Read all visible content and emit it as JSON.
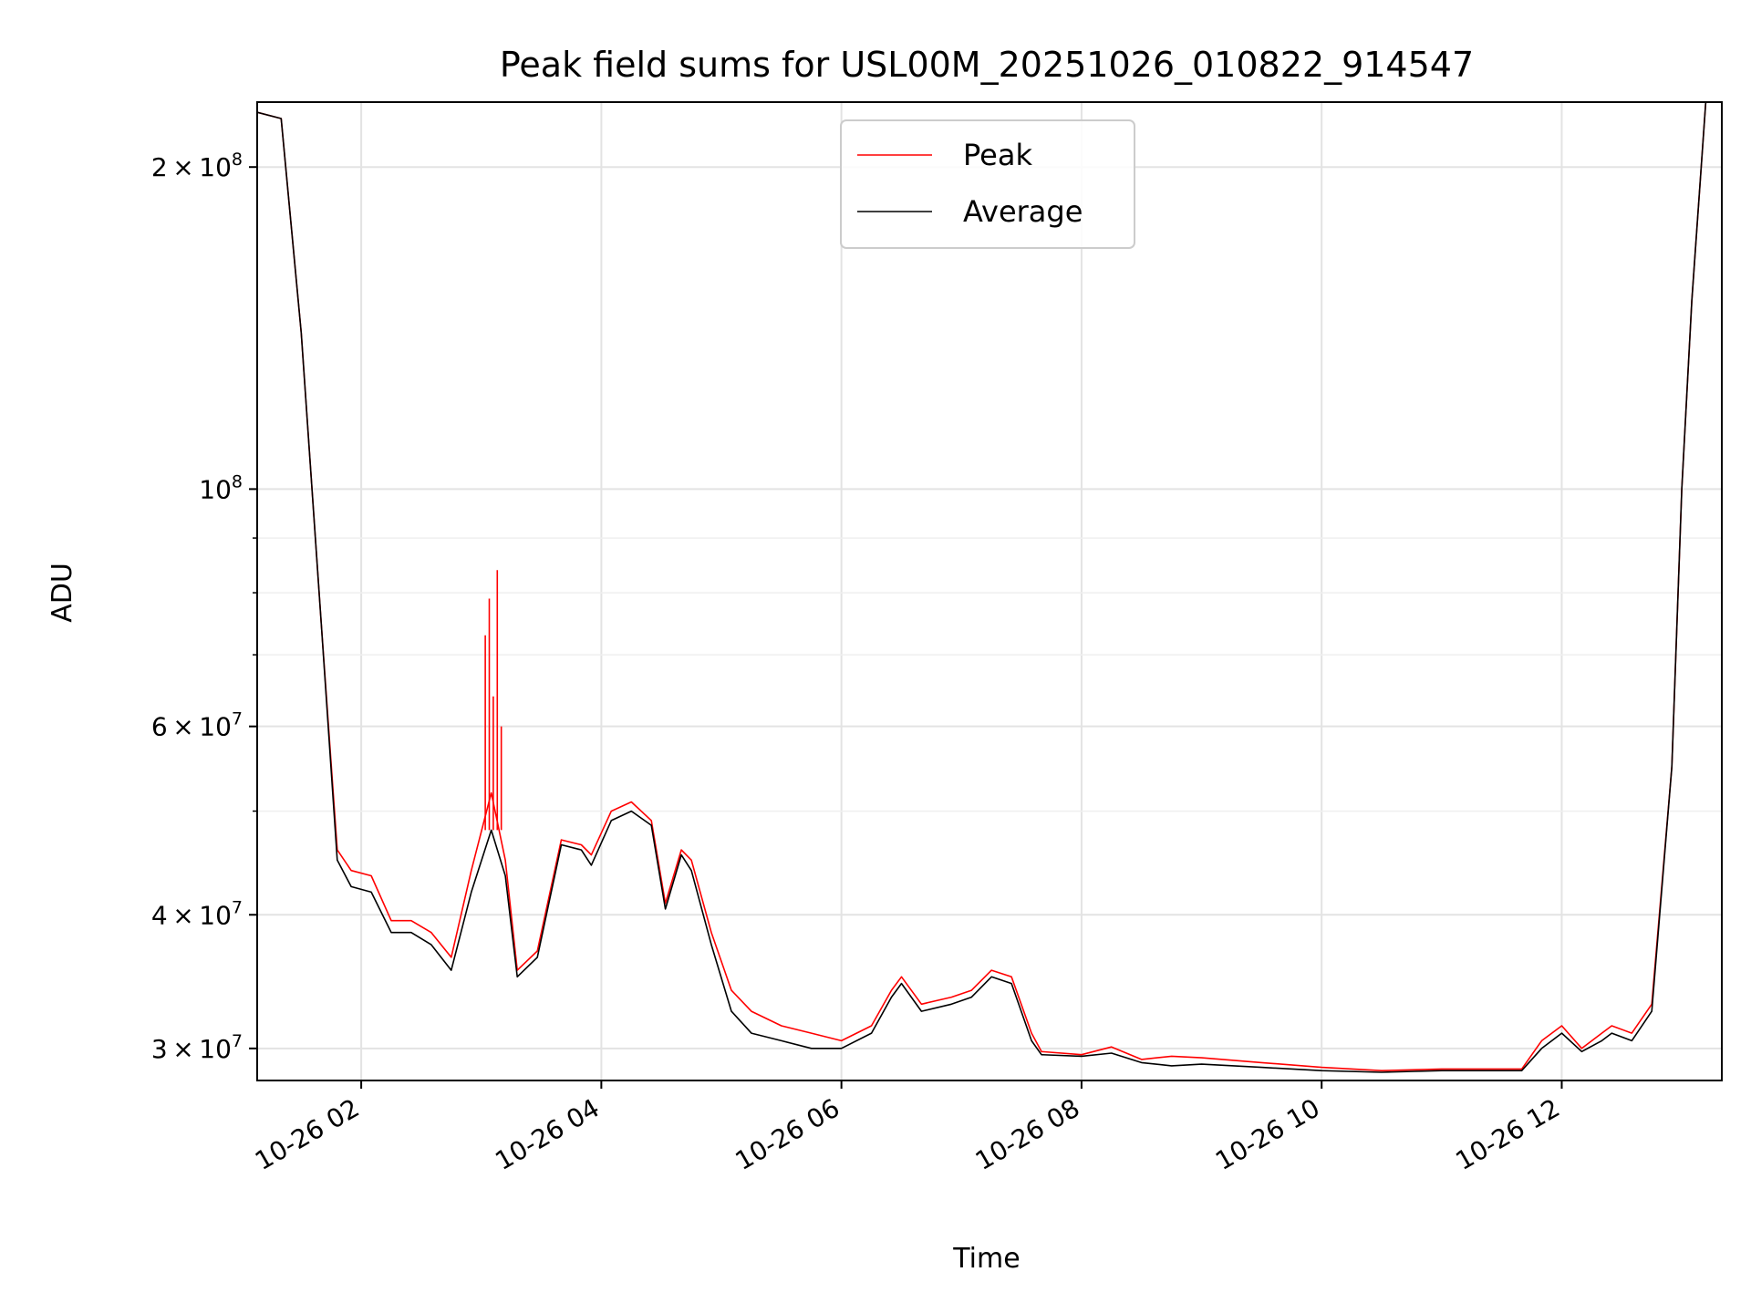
{
  "chart_data": {
    "type": "line",
    "title": "Peak field sums for USL00M_20251026_010822_914547",
    "xlabel": "Time",
    "ylabel": "ADU",
    "y_scale": "log",
    "xlim": [
      "2025-10-26 01:08",
      "2025-10-26 13:20"
    ],
    "ylim": [
      28000000,
      230000000
    ],
    "grid": true,
    "legend_position": "top-center",
    "x_ticks": [
      {
        "value": "2025-10-26 02:00",
        "label": "10-26 02"
      },
      {
        "value": "2025-10-26 04:00",
        "label": "10-26 04"
      },
      {
        "value": "2025-10-26 06:00",
        "label": "10-26 06"
      },
      {
        "value": "2025-10-26 08:00",
        "label": "10-26 08"
      },
      {
        "value": "2025-10-26 10:00",
        "label": "10-26 10"
      },
      {
        "value": "2025-10-26 12:00",
        "label": "10-26 12"
      }
    ],
    "y_ticks": [
      {
        "value": 30000000,
        "base": "3",
        "exp": "7"
      },
      {
        "value": 40000000,
        "base": "4",
        "exp": "7"
      },
      {
        "value": 60000000,
        "base": "6",
        "exp": "7"
      },
      {
        "value": 100000000,
        "base": "",
        "exp": "8"
      },
      {
        "value": 200000000,
        "base": "2",
        "exp": "8"
      }
    ],
    "y_minor_ticks": [
      50000000,
      70000000,
      80000000,
      90000000
    ],
    "series": [
      {
        "name": "Peak",
        "color": "#ff0000",
        "points": [
          [
            "2025-10-26 01:08",
            225000000
          ],
          [
            "2025-10-26 01:20",
            222000000
          ],
          [
            "2025-10-26 01:30",
            140000000
          ],
          [
            "2025-10-26 01:40",
            75000000
          ],
          [
            "2025-10-26 01:48",
            46000000
          ],
          [
            "2025-10-26 01:55",
            44000000
          ],
          [
            "2025-10-26 02:05",
            43500000
          ],
          [
            "2025-10-26 02:15",
            39500000
          ],
          [
            "2025-10-26 02:25",
            39500000
          ],
          [
            "2025-10-26 02:35",
            38500000
          ],
          [
            "2025-10-26 02:45",
            36500000
          ],
          [
            "2025-10-26 02:55",
            44000000
          ],
          [
            "2025-10-26 03:05",
            52000000
          ],
          [
            "2025-10-26 03:12",
            45000000
          ],
          [
            "2025-10-26 03:18",
            35500000
          ],
          [
            "2025-10-26 03:28",
            37000000
          ],
          [
            "2025-10-26 03:40",
            47000000
          ],
          [
            "2025-10-26 03:50",
            46500000
          ],
          [
            "2025-10-26 03:55",
            45500000
          ],
          [
            "2025-10-26 04:05",
            50000000
          ],
          [
            "2025-10-26 04:15",
            51000000
          ],
          [
            "2025-10-26 04:25",
            49000000
          ],
          [
            "2025-10-26 04:32",
            41000000
          ],
          [
            "2025-10-26 04:40",
            46000000
          ],
          [
            "2025-10-26 04:45",
            45000000
          ],
          [
            "2025-10-26 04:55",
            38500000
          ],
          [
            "2025-10-26 05:05",
            34000000
          ],
          [
            "2025-10-26 05:15",
            32500000
          ],
          [
            "2025-10-26 05:30",
            31500000
          ],
          [
            "2025-10-26 05:45",
            31000000
          ],
          [
            "2025-10-26 06:00",
            30500000
          ],
          [
            "2025-10-26 06:15",
            31500000
          ],
          [
            "2025-10-26 06:25",
            34000000
          ],
          [
            "2025-10-26 06:30",
            35000000
          ],
          [
            "2025-10-26 06:40",
            33000000
          ],
          [
            "2025-10-26 06:55",
            33500000
          ],
          [
            "2025-10-26 07:05",
            34000000
          ],
          [
            "2025-10-26 07:15",
            35500000
          ],
          [
            "2025-10-26 07:25",
            35000000
          ],
          [
            "2025-10-26 07:35",
            31000000
          ],
          [
            "2025-10-26 07:40",
            29800000
          ],
          [
            "2025-10-26 08:00",
            29600000
          ],
          [
            "2025-10-26 08:15",
            30100000
          ],
          [
            "2025-10-26 08:30",
            29300000
          ],
          [
            "2025-10-26 08:45",
            29500000
          ],
          [
            "2025-10-26 09:00",
            29400000
          ],
          [
            "2025-10-26 09:30",
            29100000
          ],
          [
            "2025-10-26 10:00",
            28800000
          ],
          [
            "2025-10-26 10:30",
            28600000
          ],
          [
            "2025-10-26 11:00",
            28700000
          ],
          [
            "2025-10-26 11:40",
            28700000
          ],
          [
            "2025-10-26 11:50",
            30500000
          ],
          [
            "2025-10-26 12:00",
            31500000
          ],
          [
            "2025-10-26 12:10",
            30000000
          ],
          [
            "2025-10-26 12:20",
            31000000
          ],
          [
            "2025-10-26 12:25",
            31500000
          ],
          [
            "2025-10-26 12:35",
            31000000
          ],
          [
            "2025-10-26 12:45",
            33000000
          ],
          [
            "2025-10-26 12:55",
            55000000
          ],
          [
            "2025-10-26 13:00",
            100000000
          ],
          [
            "2025-10-26 13:05",
            150000000
          ],
          [
            "2025-10-26 13:12",
            230000000
          ]
        ]
      },
      {
        "name": "Average",
        "color": "#000000",
        "points": [
          [
            "2025-10-26 01:08",
            225000000
          ],
          [
            "2025-10-26 01:20",
            222000000
          ],
          [
            "2025-10-26 01:30",
            140000000
          ],
          [
            "2025-10-26 01:40",
            75000000
          ],
          [
            "2025-10-26 01:48",
            45000000
          ],
          [
            "2025-10-26 01:55",
            42500000
          ],
          [
            "2025-10-26 02:05",
            42000000
          ],
          [
            "2025-10-26 02:15",
            38500000
          ],
          [
            "2025-10-26 02:25",
            38500000
          ],
          [
            "2025-10-26 02:35",
            37500000
          ],
          [
            "2025-10-26 02:45",
            35500000
          ],
          [
            "2025-10-26 02:55",
            42000000
          ],
          [
            "2025-10-26 03:05",
            48000000
          ],
          [
            "2025-10-26 03:12",
            43500000
          ],
          [
            "2025-10-26 03:18",
            35000000
          ],
          [
            "2025-10-26 03:28",
            36500000
          ],
          [
            "2025-10-26 03:40",
            46500000
          ],
          [
            "2025-10-26 03:50",
            46000000
          ],
          [
            "2025-10-26 03:55",
            44500000
          ],
          [
            "2025-10-26 04:05",
            49000000
          ],
          [
            "2025-10-26 04:15",
            50000000
          ],
          [
            "2025-10-26 04:25",
            48500000
          ],
          [
            "2025-10-26 04:32",
            40500000
          ],
          [
            "2025-10-26 04:40",
            45500000
          ],
          [
            "2025-10-26 04:45",
            44000000
          ],
          [
            "2025-10-26 04:55",
            37500000
          ],
          [
            "2025-10-26 05:05",
            32500000
          ],
          [
            "2025-10-26 05:15",
            31000000
          ],
          [
            "2025-10-26 05:30",
            30500000
          ],
          [
            "2025-10-26 05:45",
            30000000
          ],
          [
            "2025-10-26 06:00",
            30000000
          ],
          [
            "2025-10-26 06:15",
            31000000
          ],
          [
            "2025-10-26 06:25",
            33500000
          ],
          [
            "2025-10-26 06:30",
            34500000
          ],
          [
            "2025-10-26 06:40",
            32500000
          ],
          [
            "2025-10-26 06:55",
            33000000
          ],
          [
            "2025-10-26 07:05",
            33500000
          ],
          [
            "2025-10-26 07:15",
            35000000
          ],
          [
            "2025-10-26 07:25",
            34500000
          ],
          [
            "2025-10-26 07:35",
            30500000
          ],
          [
            "2025-10-26 07:40",
            29600000
          ],
          [
            "2025-10-26 08:00",
            29500000
          ],
          [
            "2025-10-26 08:15",
            29700000
          ],
          [
            "2025-10-26 08:30",
            29100000
          ],
          [
            "2025-10-26 08:45",
            28900000
          ],
          [
            "2025-10-26 09:00",
            29000000
          ],
          [
            "2025-10-26 09:30",
            28800000
          ],
          [
            "2025-10-26 10:00",
            28600000
          ],
          [
            "2025-10-26 10:30",
            28500000
          ],
          [
            "2025-10-26 11:00",
            28600000
          ],
          [
            "2025-10-26 11:40",
            28600000
          ],
          [
            "2025-10-26 11:50",
            30000000
          ],
          [
            "2025-10-26 12:00",
            31000000
          ],
          [
            "2025-10-26 12:10",
            29800000
          ],
          [
            "2025-10-26 12:20",
            30500000
          ],
          [
            "2025-10-26 12:25",
            31000000
          ],
          [
            "2025-10-26 12:35",
            30500000
          ],
          [
            "2025-10-26 12:45",
            32500000
          ],
          [
            "2025-10-26 12:55",
            55000000
          ],
          [
            "2025-10-26 13:00",
            100000000
          ],
          [
            "2025-10-26 13:05",
            150000000
          ],
          [
            "2025-10-26 13:12",
            230000000
          ]
        ]
      }
    ],
    "peak_spikes": [
      [
        "2025-10-26 03:02",
        73000000
      ],
      [
        "2025-10-26 03:04",
        79000000
      ],
      [
        "2025-10-26 03:06",
        64000000
      ],
      [
        "2025-10-26 03:08",
        84000000
      ],
      [
        "2025-10-26 03:10",
        60000000
      ]
    ]
  }
}
